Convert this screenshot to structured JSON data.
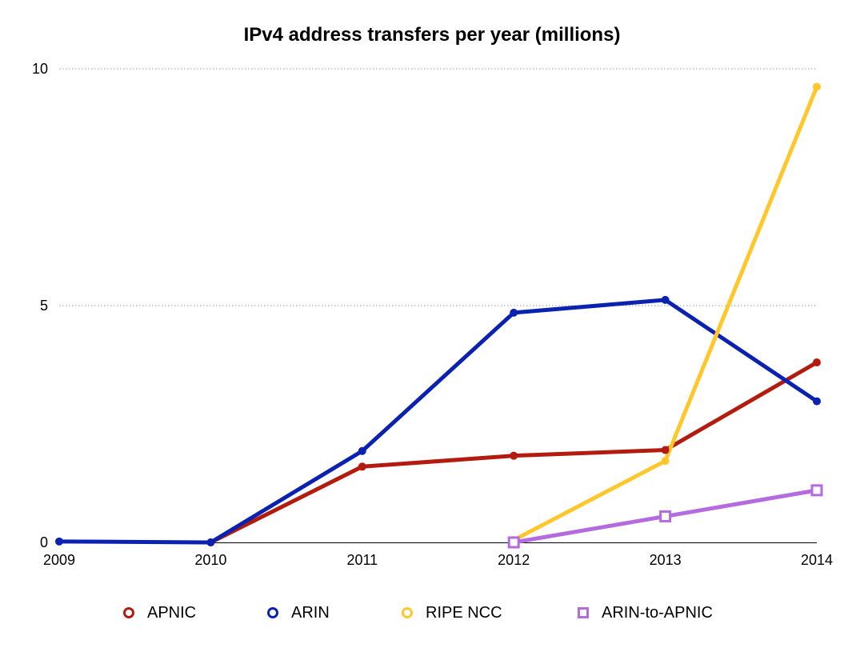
{
  "chart_data": {
    "type": "line",
    "title": "IPv4 address transfers per year (millions)",
    "xlabel": "",
    "ylabel": "",
    "x": [
      2009,
      2010,
      2011,
      2012,
      2013,
      2014
    ],
    "x_tick_labels": [
      "2009",
      "2010",
      "2011",
      "2012",
      "2013",
      "2014"
    ],
    "ylim": [
      0,
      10
    ],
    "y_ticks": [
      0,
      5,
      10
    ],
    "y_tick_labels": [
      "0",
      "5",
      "10"
    ],
    "grid": "horizontal dotted",
    "legend_position": "bottom",
    "series": [
      {
        "name": "APNIC",
        "color": "#b31b0f",
        "marker": "circle",
        "x": [
          2010,
          2011,
          2012,
          2013,
          2014
        ],
        "values": [
          0.0,
          1.6,
          1.83,
          1.95,
          3.8
        ]
      },
      {
        "name": "ARIN",
        "color": "#0b22b0",
        "marker": "circle",
        "x": [
          2009,
          2010,
          2011,
          2012,
          2013,
          2014
        ],
        "values": [
          0.02,
          0.0,
          1.93,
          4.85,
          5.12,
          2.98
        ]
      },
      {
        "name": "RIPE NCC",
        "color": "#ffc72c",
        "marker": "circle",
        "x": [
          2012,
          2013,
          2014
        ],
        "values": [
          0.05,
          1.72,
          9.62
        ]
      },
      {
        "name": "ARIN-to-APNIC",
        "color": "#b46be0",
        "marker": "square",
        "x": [
          2012,
          2013,
          2014
        ],
        "values": [
          0.0,
          0.55,
          1.1
        ]
      }
    ]
  }
}
